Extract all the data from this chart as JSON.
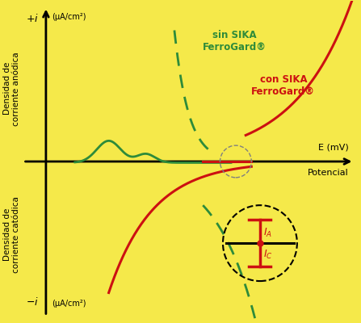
{
  "background_color": "#F5E94A",
  "green_color": "#2E8B3A",
  "red_color": "#CC1111",
  "ylabel_top": "Densidad de\ncorriente anódica",
  "ylabel_bottom": "Densidad de\ncorriente catódica",
  "legend_green": "sin SIKA\nFerroGard®",
  "legend_red": "con SIKA\nFerroGard®",
  "xlim": [
    -1.5,
    11
  ],
  "ylim": [
    -5.5,
    5.5
  ]
}
